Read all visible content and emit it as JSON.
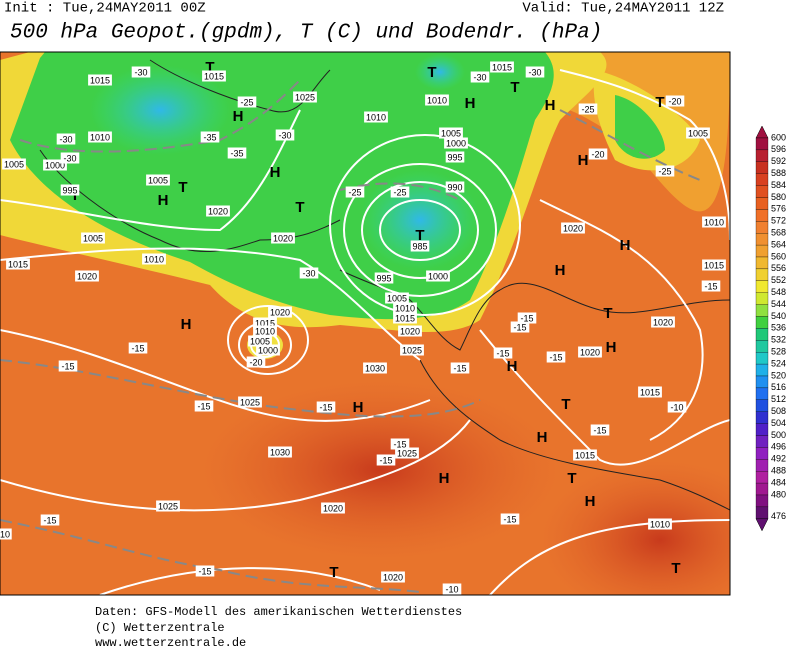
{
  "header": {
    "init": "Init : Tue,24MAY2011 00Z",
    "valid": "Valid: Tue,24MAY2011 12Z",
    "title": "500 hPa Geopot.(gpdm), T (C) und Bodendr. (hPa)"
  },
  "colorbar": {
    "labels": [
      600,
      596,
      592,
      588,
      584,
      580,
      576,
      572,
      568,
      564,
      560,
      556,
      552,
      548,
      544,
      540,
      536,
      532,
      528,
      524,
      520,
      516,
      512,
      508,
      504,
      500,
      496,
      492,
      488,
      484,
      480,
      476
    ]
  },
  "map_labels": [
    "1015",
    "-30",
    "T",
    "1015",
    "-25",
    "H",
    "1025",
    "-30",
    "H",
    "1010",
    "-30",
    "-35",
    "-35",
    "1000",
    "-30",
    "1005",
    "T",
    "H",
    "T",
    "995",
    "1005",
    "1020",
    "T",
    "1020",
    "1005",
    "1010",
    "1015",
    "1020",
    "-30",
    "1010",
    "1005",
    "1000",
    "995",
    "-25",
    "-25",
    "990",
    "T",
    "985",
    "995",
    "1000",
    "1005",
    "1010",
    "1015",
    "1020",
    "1025",
    "T",
    "1010",
    "-30",
    "1015",
    "-30",
    "T",
    "H",
    "H",
    "-25",
    "T",
    "-20",
    "1005",
    "H",
    "-20",
    "-25",
    "H",
    "1020",
    "1015",
    "1010",
    "1005",
    "1000",
    "-15",
    "-15",
    "1030",
    "-15",
    "H",
    "-15",
    "1025",
    "-15",
    "-15",
    "H",
    "1030",
    "-15",
    "1025",
    "-15",
    "H",
    "1025",
    "1020",
    "-15",
    "-15",
    "-15",
    "T",
    "1020",
    "-10",
    "T",
    "1010",
    "H",
    "T",
    "1015",
    "-15",
    "T",
    "H",
    "1015",
    "-10",
    "H",
    "T",
    "1020",
    "1020",
    "-15",
    "1020",
    "H",
    "H",
    "-15",
    "1010",
    "1015",
    "-15",
    "-15",
    "10",
    "-20"
  ],
  "footer": [
    "Daten: GFS-Modell des amerikanischen Wetterdienstes",
    "(C) Wetterzentrale",
    "www.wetterzentrale.de"
  ]
}
